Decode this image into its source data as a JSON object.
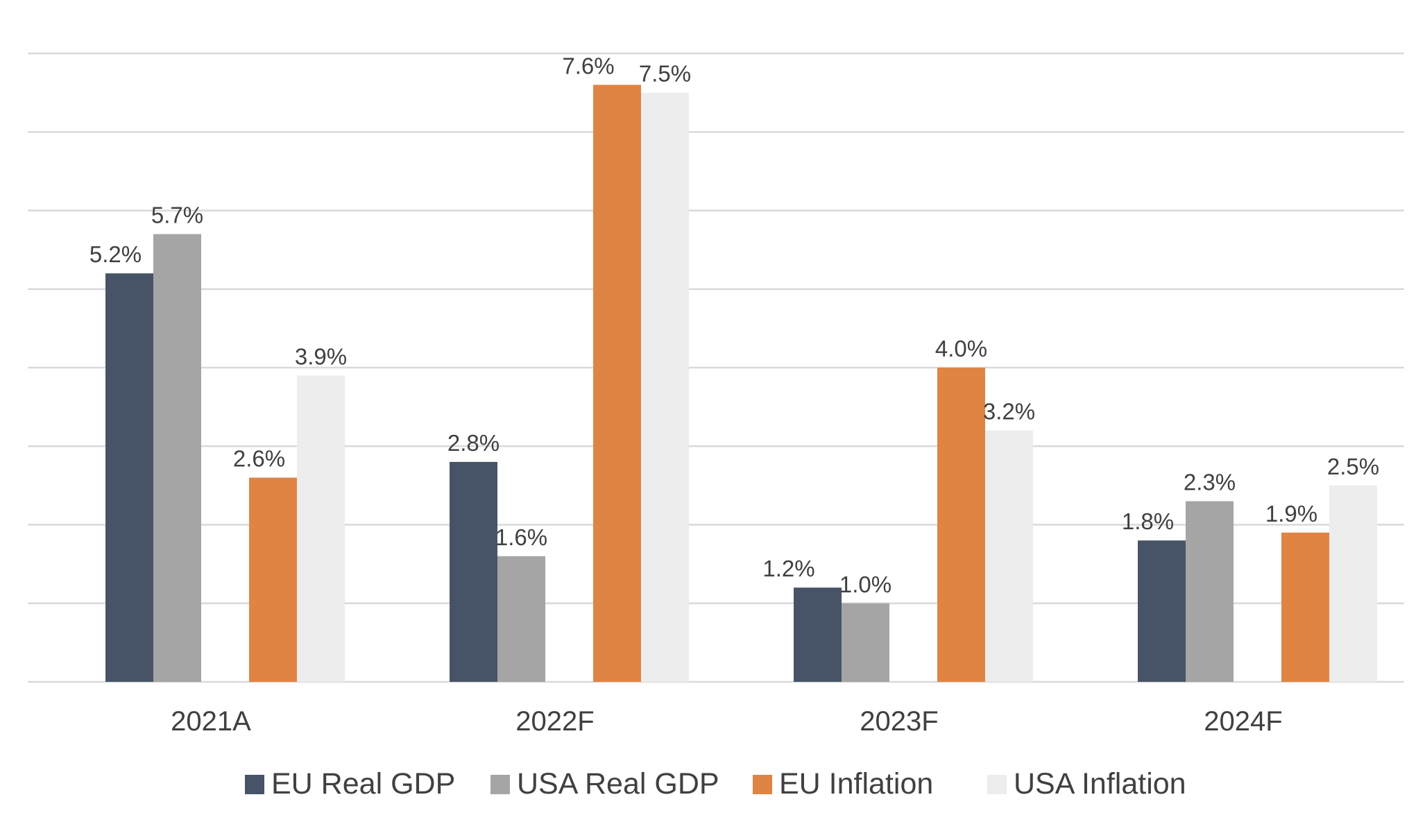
{
  "chart_data": {
    "type": "bar",
    "categories": [
      "2021A",
      "2022F",
      "2023F",
      "2024F"
    ],
    "series": [
      {
        "name": "EU Real GDP",
        "color": "#475468",
        "values": [
          5.2,
          2.8,
          1.2,
          1.8
        ],
        "labels": [
          "5.2%",
          "2.8%",
          "1.2%",
          "1.8%"
        ]
      },
      {
        "name": "USA Real GDP",
        "color": "#A5A5A5",
        "values": [
          5.7,
          1.6,
          1.0,
          2.3
        ],
        "labels": [
          "5.7%",
          "1.6%",
          "1.0%",
          "2.3%"
        ]
      },
      {
        "name": "EU Inflation",
        "color": "#E08444",
        "values": [
          2.6,
          7.6,
          4.0,
          1.9
        ],
        "labels": [
          "2.6%",
          "7.6%",
          "4.0%",
          "1.9%"
        ]
      },
      {
        "name": "USA Inflation",
        "color": "#EDEDED",
        "values": [
          3.9,
          7.5,
          3.2,
          2.5
        ],
        "labels": [
          "3.9%",
          "7.5%",
          "3.2%",
          "2.5%"
        ]
      }
    ],
    "ylim": [
      0,
      8
    ],
    "y_gridline_step": 1,
    "grid": true,
    "y_axis_labels_shown": false,
    "legend_position": "bottom",
    "gridline_color": "#D9D9D9",
    "title": "",
    "xlabel": "",
    "ylabel": ""
  }
}
